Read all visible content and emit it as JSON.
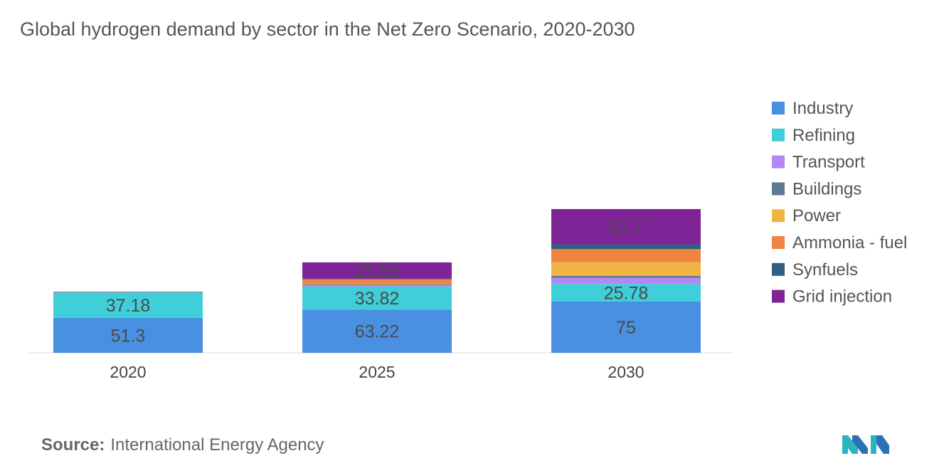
{
  "title": "Global hydrogen demand by sector in the Net Zero Scenario, 2020-2030",
  "source": {
    "label": "Source:",
    "text": "International Energy Agency"
  },
  "chart_data": {
    "type": "bar",
    "stacked": true,
    "categories": [
      "2020",
      "2025",
      "2030"
    ],
    "legend_position": "right",
    "grid": false,
    "series": [
      {
        "name": "Industry",
        "color": "#4a90e2",
        "values": [
          51.3,
          63.22,
          75
        ],
        "labels": [
          "51.3",
          "63.22",
          "75"
        ]
      },
      {
        "name": "Refining",
        "color": "#3ecfd8",
        "values": [
          37.18,
          33.82,
          25.78
        ],
        "labels": [
          "37.18",
          "33.82",
          "25.78"
        ]
      },
      {
        "name": "Transport",
        "color": "#b388f5",
        "values": [
          0.2,
          2,
          9
        ],
        "labels": [
          "",
          "",
          ""
        ]
      },
      {
        "name": "Buildings",
        "color": "#5f7896",
        "values": [
          0.1,
          1,
          3
        ],
        "labels": [
          "",
          "",
          ""
        ]
      },
      {
        "name": "Power",
        "color": "#f0b443",
        "values": [
          0,
          0.5,
          20
        ],
        "labels": [
          "",
          "",
          ""
        ]
      },
      {
        "name": "Ammonia - fuel",
        "color": "#f08441",
        "values": [
          0.3,
          7,
          19
        ],
        "labels": [
          "",
          "",
          ""
        ]
      },
      {
        "name": "Synfuels",
        "color": "#2f5f84",
        "values": [
          0,
          1,
          7
        ],
        "labels": [
          "",
          "",
          ""
        ]
      },
      {
        "name": "Grid injection",
        "color": "#7e2497",
        "values": [
          0.5,
          23.85,
          51.7
        ],
        "labels": [
          "",
          "23.85",
          "51.7"
        ]
      }
    ]
  }
}
